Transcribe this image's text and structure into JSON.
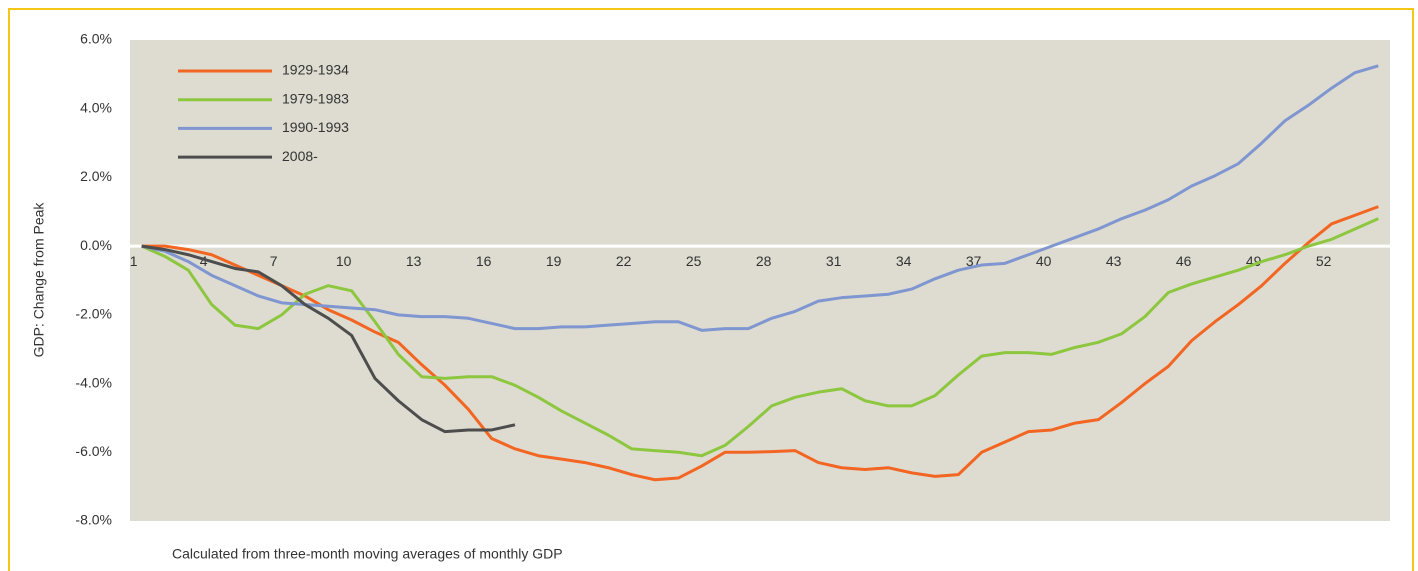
{
  "chart_data": {
    "type": "line",
    "y_label": "GDP: Change from Peak",
    "note": "Calculated from three-month moving averages of monthly GDP",
    "x": [
      1,
      2,
      3,
      4,
      5,
      6,
      7,
      8,
      9,
      10,
      11,
      12,
      13,
      14,
      15,
      16,
      17,
      18,
      19,
      20,
      21,
      22,
      23,
      24,
      25,
      26,
      27,
      28,
      29,
      30,
      31,
      32,
      33,
      34,
      35,
      36,
      37,
      38,
      39,
      40,
      41,
      42,
      43,
      44,
      45,
      46,
      47,
      48,
      49,
      50,
      51,
      52,
      53,
      54
    ],
    "xlim": [
      0.5,
      54.5
    ],
    "xticks": [
      1,
      4,
      7,
      10,
      13,
      16,
      19,
      22,
      25,
      28,
      31,
      34,
      37,
      40,
      43,
      46,
      49,
      52
    ],
    "ylim": [
      -8,
      6
    ],
    "yticks": [
      {
        "value": -8,
        "label": "-8.0%"
      },
      {
        "value": -6,
        "label": "-6.0%"
      },
      {
        "value": -4,
        "label": "-4.0%"
      },
      {
        "value": -2,
        "label": "-2.0%"
      },
      {
        "value": 0,
        "label": "0.0%"
      },
      {
        "value": 2,
        "label": "2.0%"
      },
      {
        "value": 4,
        "label": "4.0%"
      },
      {
        "value": 6,
        "label": "6.0%"
      }
    ],
    "legend": "top-left",
    "series": [
      {
        "name": "1929-1934",
        "color": "#f26522",
        "values": [
          0,
          0,
          -0.1,
          -0.25,
          -0.55,
          -0.85,
          -1.15,
          -1.45,
          -1.85,
          -2.15,
          -2.5,
          -2.8,
          -3.45,
          -4.05,
          -4.75,
          -5.6,
          -5.9,
          -6.1,
          -6.2,
          -6.3,
          -6.45,
          -6.65,
          -6.8,
          -6.75,
          -6.4,
          -6.0,
          -6.0,
          -5.98,
          -5.95,
          -6.3,
          -6.45,
          -6.5,
          -6.45,
          -6.6,
          -6.7,
          -6.65,
          -6.0,
          -5.7,
          -5.4,
          -5.35,
          -5.15,
          -5.05,
          -4.55,
          -4.0,
          -3.5,
          -2.75,
          -2.2,
          -1.7,
          -1.15,
          -0.5,
          0.1,
          0.65,
          0.9,
          1.15
        ]
      },
      {
        "name": "1979-1983",
        "color": "#8dc63f",
        "values": [
          0,
          -0.3,
          -0.7,
          -1.7,
          -2.3,
          -2.4,
          -2.0,
          -1.4,
          -1.15,
          -1.3,
          -2.2,
          -3.15,
          -3.8,
          -3.85,
          -3.8,
          -3.8,
          -4.05,
          -4.4,
          -4.8,
          -5.15,
          -5.5,
          -5.9,
          -5.95,
          -6.0,
          -6.1,
          -5.8,
          -5.25,
          -4.65,
          -4.4,
          -4.25,
          -4.15,
          -4.5,
          -4.65,
          -4.65,
          -4.35,
          -3.75,
          -3.2,
          -3.1,
          -3.1,
          -3.15,
          -2.95,
          -2.8,
          -2.55,
          -2.05,
          -1.35,
          -1.1,
          -0.9,
          -0.7,
          -0.45,
          -0.25,
          0.0,
          0.2,
          0.5,
          0.8
        ]
      },
      {
        "name": "1990-1993",
        "color": "#7f96d0",
        "values": [
          0,
          -0.15,
          -0.45,
          -0.85,
          -1.15,
          -1.45,
          -1.65,
          -1.7,
          -1.75,
          -1.8,
          -1.85,
          -2.0,
          -2.05,
          -2.05,
          -2.1,
          -2.25,
          -2.4,
          -2.4,
          -2.35,
          -2.35,
          -2.3,
          -2.25,
          -2.2,
          -2.2,
          -2.45,
          -2.4,
          -2.4,
          -2.1,
          -1.9,
          -1.6,
          -1.5,
          -1.45,
          -1.4,
          -1.25,
          -0.95,
          -0.7,
          -0.55,
          -0.5,
          -0.25,
          0.0,
          0.25,
          0.5,
          0.8,
          1.05,
          1.35,
          1.75,
          2.05,
          2.4,
          3.0,
          3.65,
          4.1,
          4.6,
          5.05,
          5.25
        ]
      },
      {
        "name": "2008-",
        "color": "#4d4d4d",
        "values": [
          0,
          -0.1,
          -0.25,
          -0.45,
          -0.65,
          -0.75,
          -1.15,
          -1.7,
          -2.1,
          -2.6,
          -3.85,
          -4.5,
          -5.05,
          -5.4,
          -5.35,
          -5.35,
          -5.2,
          null,
          null,
          null,
          null,
          null,
          null,
          null,
          null,
          null,
          null,
          null,
          null,
          null,
          null,
          null,
          null,
          null,
          null,
          null,
          null,
          null,
          null,
          null,
          null,
          null,
          null,
          null,
          null,
          null,
          null,
          null,
          null,
          null,
          null,
          null,
          null,
          null
        ]
      }
    ]
  }
}
